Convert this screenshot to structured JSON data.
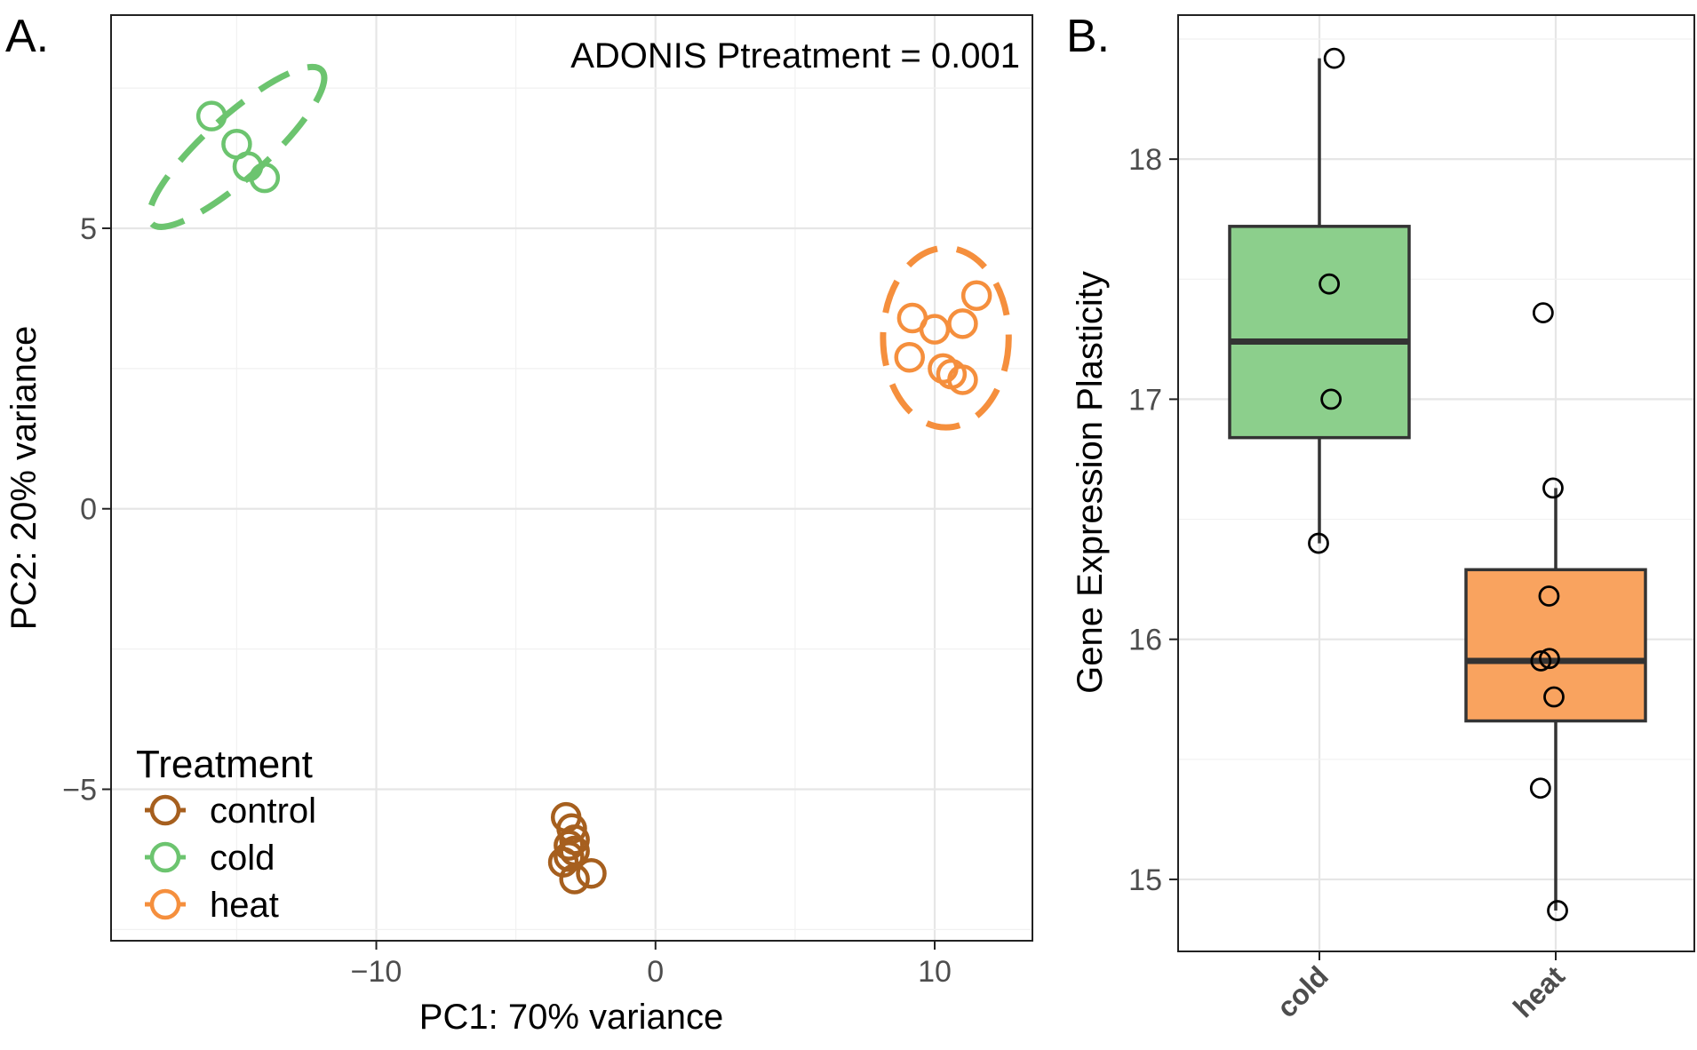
{
  "panel_labels": {
    "a": "A.",
    "b": "B."
  },
  "colors": {
    "control": "#A65F1E",
    "cold": "#6CC46F",
    "heat": "#F58F3D",
    "cold_fill": "#8CCF8C",
    "heat_fill": "#F9A35F",
    "grid_major": "#E6E6E6",
    "grid_minor": "#F1F1F1",
    "axis": "#222222",
    "tick_text": "#4D4D4D"
  },
  "chart_data": [
    {
      "type": "scatter",
      "title": "",
      "annotation": "ADONIS Ptreatment = 0.001",
      "xlabel": "PC1: 70% variance",
      "ylabel": "PC2: 20% variance",
      "xlim": [
        -19.5,
        13.5
      ],
      "ylim": [
        -7.7,
        8.8
      ],
      "x_ticks": [
        -10,
        0,
        10
      ],
      "y_ticks": [
        -5,
        0,
        5
      ],
      "x_tick_labels": [
        "−10",
        "0",
        "10"
      ],
      "y_tick_labels": [
        "−5",
        "0",
        "5"
      ],
      "grid": true,
      "legend": {
        "title": "Treatment",
        "position": "bottom-left",
        "entries": [
          "control",
          "cold",
          "heat"
        ]
      },
      "series": [
        {
          "name": "control",
          "points": [
            [
              -3.2,
              -5.5
            ],
            [
              -3.0,
              -5.7
            ],
            [
              -2.9,
              -5.9
            ],
            [
              -3.1,
              -6.0
            ],
            [
              -2.9,
              -6.1
            ],
            [
              -3.1,
              -6.2
            ],
            [
              -3.3,
              -6.3
            ],
            [
              -2.3,
              -6.5
            ],
            [
              -2.9,
              -6.6
            ]
          ]
        },
        {
          "name": "cold",
          "points": [
            [
              -15.9,
              7.0
            ],
            [
              -15.0,
              6.5
            ],
            [
              -14.6,
              6.1
            ],
            [
              -14.0,
              5.9
            ]
          ]
        },
        {
          "name": "heat",
          "points": [
            [
              9.2,
              3.4
            ],
            [
              10.0,
              3.2
            ],
            [
              11.0,
              3.3
            ],
            [
              11.5,
              3.8
            ],
            [
              9.1,
              2.7
            ],
            [
              10.3,
              2.5
            ],
            [
              10.6,
              2.4
            ],
            [
              11.0,
              2.3
            ]
          ]
        }
      ],
      "ellipses": [
        {
          "series": "cold",
          "cx": -15.0,
          "cy": 6.45,
          "rx": 4.1,
          "ry": 0.55,
          "angle_deg": -42
        },
        {
          "series": "heat",
          "cx": 10.4,
          "cy": 3.05,
          "rx": 2.25,
          "ry": 1.6,
          "angle_deg": 0
        }
      ]
    },
    {
      "type": "box",
      "title": "",
      "xlabel": "",
      "ylabel": "Gene Expression Plasticity",
      "categories": [
        "cold",
        "heat"
      ],
      "ylim": [
        14.7,
        18.6
      ],
      "y_ticks": [
        15,
        16,
        17,
        18
      ],
      "y_tick_labels": [
        "15",
        "16",
        "17",
        "18"
      ],
      "grid": true,
      "boxes": [
        {
          "category": "cold",
          "q1": 16.84,
          "median": 17.24,
          "q3": 17.72,
          "whisker_low": 16.4,
          "whisker_high": 18.42
        },
        {
          "category": "heat",
          "q1": 15.66,
          "median": 15.91,
          "q3": 16.29,
          "whisker_low": 14.87,
          "whisker_high": 16.63
        }
      ],
      "points": [
        {
          "category": "cold",
          "values": [
            18.42,
            17.48,
            17.0,
            16.4
          ],
          "jitter": [
            0.33,
            0.22,
            0.26,
            -0.02
          ]
        },
        {
          "category": "heat",
          "values": [
            17.36,
            16.63,
            16.18,
            15.92,
            15.91,
            15.76,
            15.38,
            14.87
          ],
          "jitter": [
            -0.28,
            -0.06,
            -0.15,
            -0.14,
            -0.33,
            -0.04,
            -0.34,
            0.04
          ]
        }
      ]
    }
  ]
}
